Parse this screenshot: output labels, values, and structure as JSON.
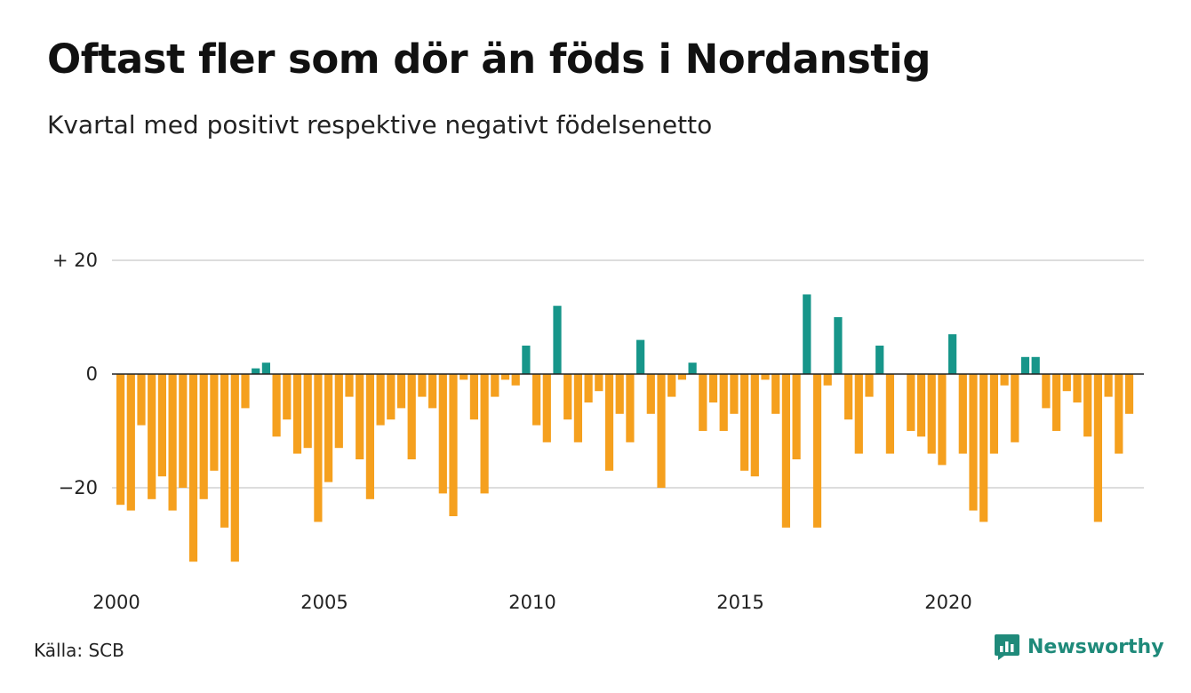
{
  "title": "Oftast fler som dör än föds i Nordanstig",
  "subtitle": "Kvartal med positivt respektive negativt födelsenetto",
  "source": "Källa: SCB",
  "brand": {
    "name": "Newsworthy",
    "icon": "newsworthy-logo-icon"
  },
  "colors": {
    "positive": "#17968a",
    "negative": "#f5a01e",
    "grid": "#dddddd",
    "zero_line": "#222222"
  },
  "chart_data": {
    "type": "bar",
    "x_start": 2000,
    "periods_per_year": 4,
    "values": [
      -23,
      -24,
      -9,
      -22,
      -18,
      -24,
      -20,
      -33,
      -22,
      -17,
      -27,
      -33,
      -6,
      1,
      2,
      -11,
      -8,
      -14,
      -13,
      -26,
      -19,
      -13,
      -4,
      -15,
      -22,
      -9,
      -8,
      -6,
      -15,
      -4,
      -6,
      -21,
      -25,
      -1,
      -8,
      -21,
      -4,
      -1,
      -2,
      5,
      -9,
      -12,
      12,
      -8,
      -12,
      -5,
      -3,
      -17,
      -7,
      -12,
      6,
      -7,
      -20,
      -4,
      -1,
      2,
      -10,
      -5,
      -10,
      -7,
      -17,
      -18,
      -1,
      -7,
      -27,
      -15,
      14,
      -27,
      -2,
      10,
      -8,
      -14,
      -4,
      5,
      -14,
      0,
      -10,
      -11,
      -14,
      -16,
      7,
      -14,
      -24,
      -26,
      -14,
      -2,
      -12,
      3,
      3,
      -6,
      -10,
      -3,
      -5,
      -11,
      -26,
      -4,
      -14,
      -7
    ],
    "y_ticks": [
      {
        "value": 20,
        "label": "+ 20"
      },
      {
        "value": 0,
        "label": "0"
      },
      {
        "value": -20,
        "label": "−20"
      }
    ],
    "x_ticks": [
      {
        "value": 2000,
        "label": "2000"
      },
      {
        "value": 2005,
        "label": "2005"
      },
      {
        "value": 2010,
        "label": "2010"
      },
      {
        "value": 2015,
        "label": "2015"
      },
      {
        "value": 2020,
        "label": "2020"
      }
    ],
    "ylim": [
      -36,
      20
    ],
    "grid": true
  }
}
